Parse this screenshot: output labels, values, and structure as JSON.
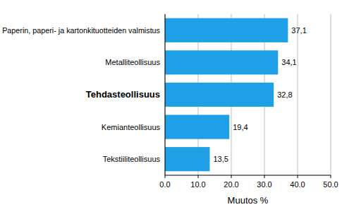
{
  "chart_data": {
    "type": "bar",
    "orientation": "horizontal",
    "categories": [
      "Paperin, paperi- ja kartonkituotteiden valmistus",
      "Metalliteollisuus",
      "Tehdasteollisuus",
      "Kemianteollisuus",
      "Tekstiiliteollisuus"
    ],
    "values": [
      37.1,
      34.1,
      32.8,
      19.4,
      13.5
    ],
    "value_labels": [
      "37,1",
      "34,1",
      "32,8",
      "19,4",
      "13,5"
    ],
    "data_labels": true,
    "color": "#1e9fe6",
    "xlabel": "Muutos %",
    "xlim": [
      0,
      50
    ],
    "xticks": [
      {
        "value": 0,
        "label": "0.0"
      },
      {
        "value": 10,
        "label": "10.0"
      },
      {
        "value": 20,
        "label": "20.0"
      },
      {
        "value": 30,
        "label": "30.0"
      },
      {
        "value": 40,
        "label": "40.0"
      },
      {
        "value": 50,
        "label": "50.0"
      }
    ],
    "grid": true
  }
}
